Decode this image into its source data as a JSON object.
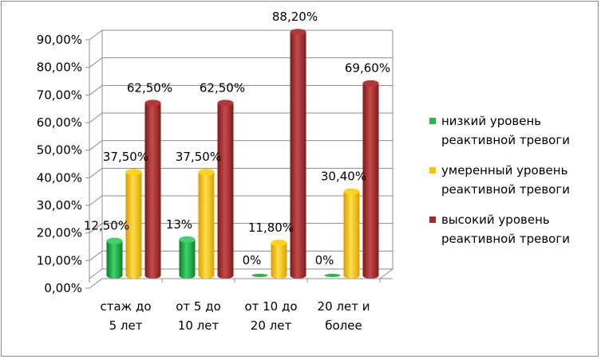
{
  "chart_data": {
    "type": "bar",
    "categories": [
      [
        "стаж до",
        "5 лет"
      ],
      [
        "от 5 до",
        "10 лет"
      ],
      [
        "от 10 до",
        "20 лет"
      ],
      [
        "20 лет и",
        "более"
      ]
    ],
    "series": [
      {
        "name": [
          "низкий уровень",
          "реактивной тревоги"
        ],
        "color": "#2db34a",
        "values": [
          12.5,
          13,
          0,
          0
        ],
        "labels": [
          "12,50%",
          "13%",
          "0%",
          "0%"
        ]
      },
      {
        "name": [
          "умеренный уровень",
          "реактивной тревоги"
        ],
        "color": "#f5c400",
        "values": [
          37.5,
          37.5,
          11.8,
          30.4
        ],
        "labels": [
          "37,50%",
          "37,50%",
          "11,80%",
          "30,40%"
        ]
      },
      {
        "name": [
          "высокий уровень",
          "реактивной тревоги"
        ],
        "color": "#a12a2a",
        "values": [
          62.5,
          62.5,
          88.2,
          69.6
        ],
        "labels": [
          "62,50%",
          "62,50%",
          "88,20%",
          "69,60%"
        ]
      }
    ],
    "ylim": [
      0,
      90
    ],
    "yticks": [
      "0,00%",
      "10,00%",
      "20,00%",
      "30,00%",
      "40,00%",
      "50,00%",
      "60,00%",
      "70,00%",
      "80,00%",
      "90,00%"
    ],
    "grid": true,
    "legend": "right",
    "chart_style": "3d-cylinder"
  }
}
